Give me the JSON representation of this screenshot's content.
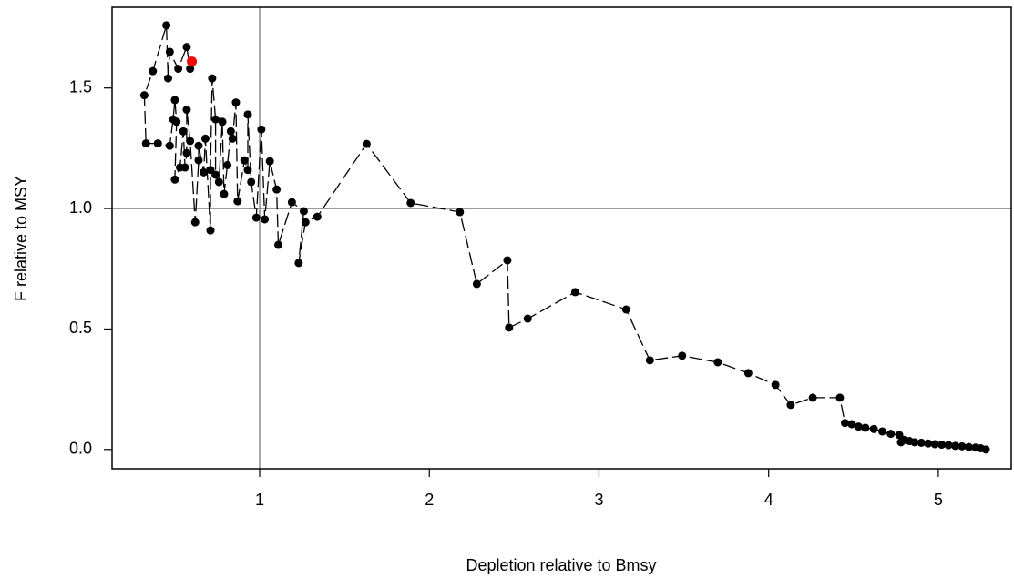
{
  "chart_data": {
    "type": "scatter",
    "xlabel": "Depletion relative to Bmsy",
    "ylabel": "F relative to MSY",
    "xlim": [
      0.13,
      5.43
    ],
    "ylim": [
      -0.08,
      1.835
    ],
    "xticks": [
      1,
      2,
      3,
      4,
      5
    ],
    "yticks": [
      {
        "value": 0,
        "label": "0.0"
      },
      {
        "value": 0.5,
        "label": "0.5"
      },
      {
        "value": 1,
        "label": "1.0"
      },
      {
        "value": 1.5,
        "label": "1.5"
      }
    ],
    "reference_lines": {
      "x": 1,
      "y": 1
    },
    "reference_color": "#8c8c8c",
    "color": "#000000",
    "last_point_color": "#ff0000",
    "line_style": "dashed",
    "x": [
      5.28,
      5.25,
      5.22,
      5.18,
      5.14,
      5.1,
      5.06,
      5.02,
      4.98,
      4.94,
      4.9,
      4.86,
      4.83,
      4.8,
      4.78,
      4.77,
      4.72,
      4.67,
      4.62,
      4.57,
      4.53,
      4.49,
      4.45,
      4.42,
      4.26,
      4.13,
      4.04,
      3.88,
      3.7,
      3.49,
      3.3,
      3.16,
      2.86,
      2.58,
      2.47,
      2.46,
      2.28,
      2.18,
      1.89,
      1.63,
      1.34,
      1.27,
      1.23,
      1.26,
      1.19,
      1.11,
      1.1,
      1.06,
      1.03,
      1.01,
      0.98,
      0.95,
      0.93,
      0.93,
      0.91,
      0.87,
      0.86,
      0.84,
      0.83,
      0.81,
      0.79,
      0.78,
      0.76,
      0.74,
      0.74,
      0.72,
      0.71,
      0.71,
      0.68,
      0.67,
      0.64,
      0.64,
      0.62,
      0.59,
      0.57,
      0.57,
      0.56,
      0.55,
      0.53,
      0.5,
      0.51,
      0.5,
      0.49,
      0.47,
      0.4,
      0.33,
      0.32,
      0.37,
      0.45,
      0.46,
      0.47,
      0.52,
      0.57,
      0.59,
      0.6
    ],
    "y": [
      0.0,
      0.005,
      0.008,
      0.01,
      0.013,
      0.015,
      0.018,
      0.02,
      0.022,
      0.025,
      0.028,
      0.03,
      0.035,
      0.04,
      0.03,
      0.06,
      0.065,
      0.075,
      0.085,
      0.09,
      0.095,
      0.105,
      0.11,
      0.215,
      0.215,
      0.185,
      0.268,
      0.317,
      0.362,
      0.389,
      0.37,
      0.581,
      0.653,
      0.543,
      0.506,
      0.785,
      0.687,
      0.985,
      1.023,
      1.268,
      0.966,
      0.943,
      0.774,
      0.989,
      1.026,
      0.849,
      1.079,
      1.196,
      0.955,
      1.328,
      0.962,
      1.11,
      1.39,
      1.16,
      1.2,
      1.03,
      1.44,
      1.29,
      1.32,
      1.18,
      1.06,
      1.36,
      1.11,
      1.14,
      1.37,
      1.54,
      1.16,
      0.909,
      1.29,
      1.15,
      1.26,
      1.2,
      0.943,
      1.28,
      1.41,
      1.23,
      1.17,
      1.32,
      1.17,
      1.12,
      1.36,
      1.45,
      1.37,
      1.26,
      1.27,
      1.27,
      1.47,
      1.57,
      1.76,
      1.54,
      1.65,
      1.58,
      1.67,
      1.58,
      1.61
    ]
  }
}
